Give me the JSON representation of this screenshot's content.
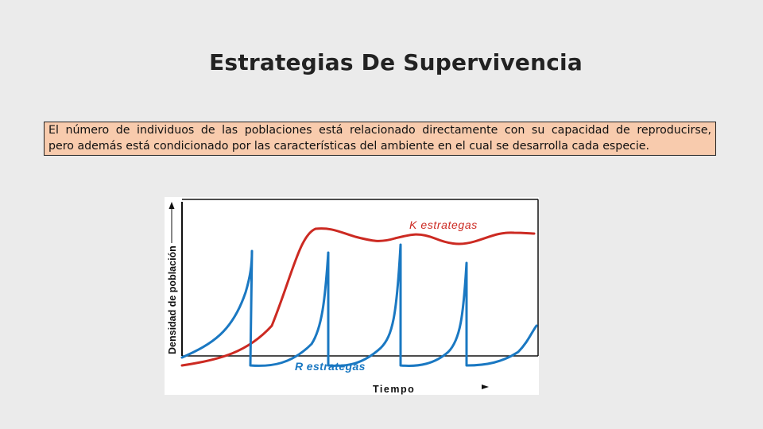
{
  "slide": {
    "title": "Estrategias De Supervivencia",
    "text_line1": "El número de individuos de las poblaciones está relacionado directamente con su capacidad de reproducirse,",
    "text_line2": "pero además está condicionado por las características del ambiente en el cual se desarrolla cada especie."
  },
  "diagram": {
    "y_axis_label": "Densidad de población",
    "x_axis_label": "Tiempo",
    "k_label": "K estrategas",
    "r_label": "R estrategas",
    "colors": {
      "k_curve": "#cc2a22",
      "r_curve": "#1a78c2",
      "axis": "#111111"
    }
  }
}
